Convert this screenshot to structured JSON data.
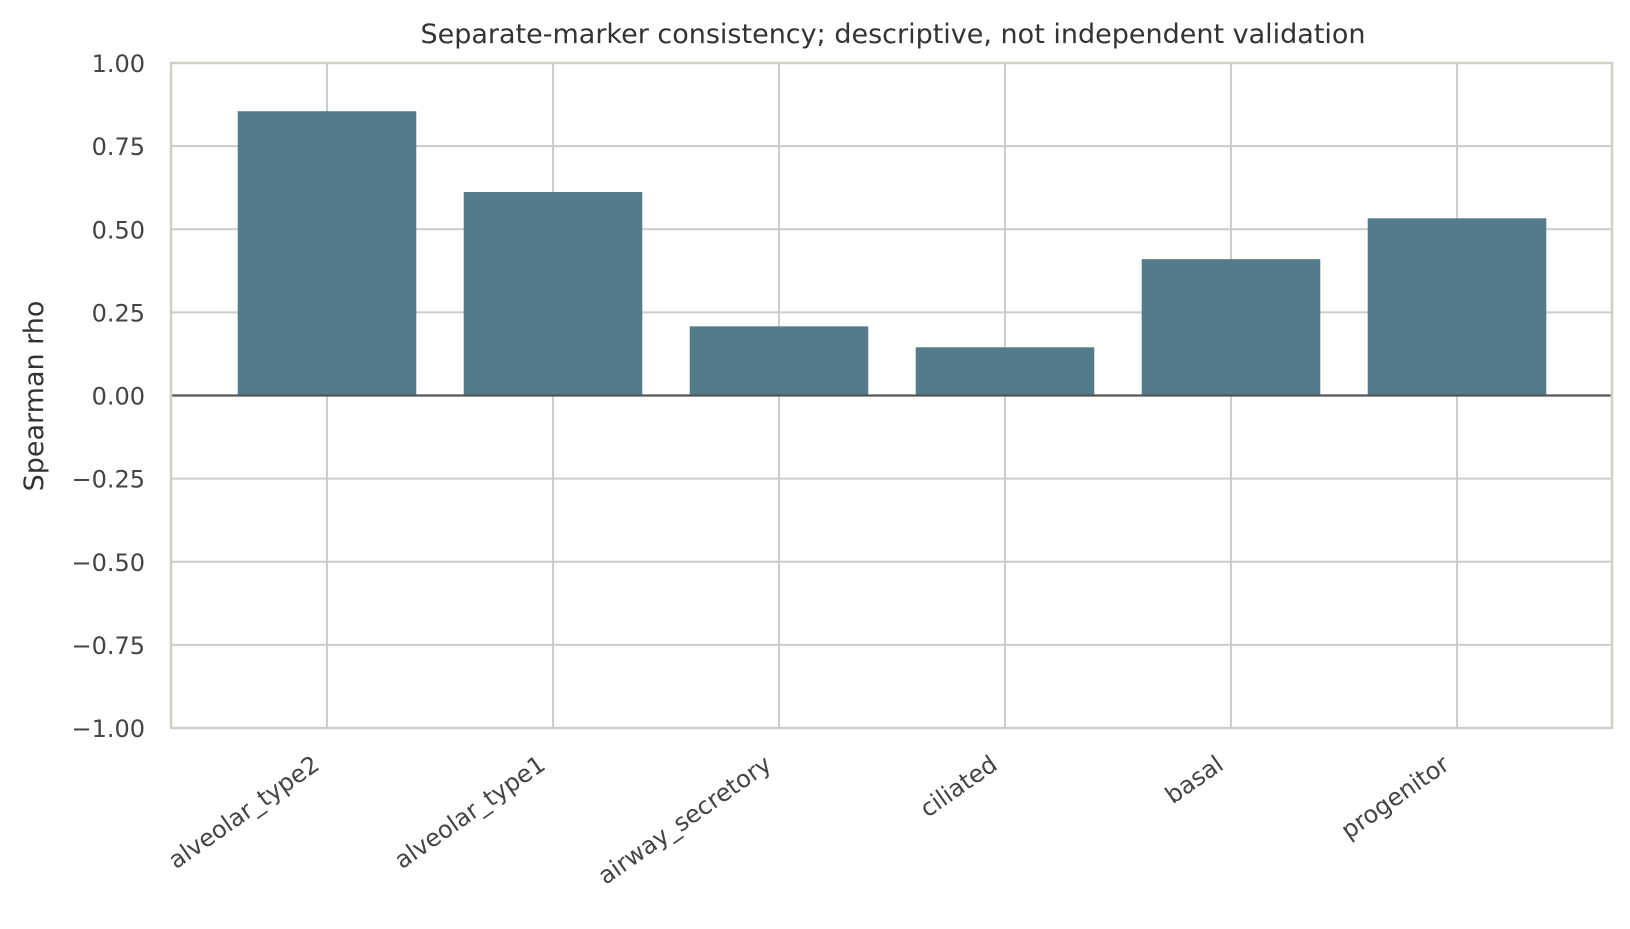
{
  "chart_data": {
    "type": "bar",
    "title": "Separate-marker consistency; descriptive, not independent validation",
    "xlabel": "",
    "ylabel": "Spearman rho",
    "categories": [
      "alveolar_type2",
      "alveolar_type1",
      "airway_secretory",
      "ciliated",
      "basal",
      "progenitor"
    ],
    "values": [
      0.855,
      0.612,
      0.208,
      0.145,
      0.41,
      0.533
    ],
    "ylim": [
      -1.0,
      1.0
    ],
    "yticks": [
      1.0,
      0.75,
      0.5,
      0.25,
      0.0,
      -0.25,
      -0.5,
      -0.75,
      -1.0
    ],
    "ytick_labels": [
      "1.00",
      "0.75",
      "0.50",
      "0.25",
      "0.00",
      "−0.25",
      "−0.50",
      "−0.75",
      "−1.00"
    ],
    "grid": true,
    "bar_color": "#537b8a",
    "reference_line": 0
  }
}
